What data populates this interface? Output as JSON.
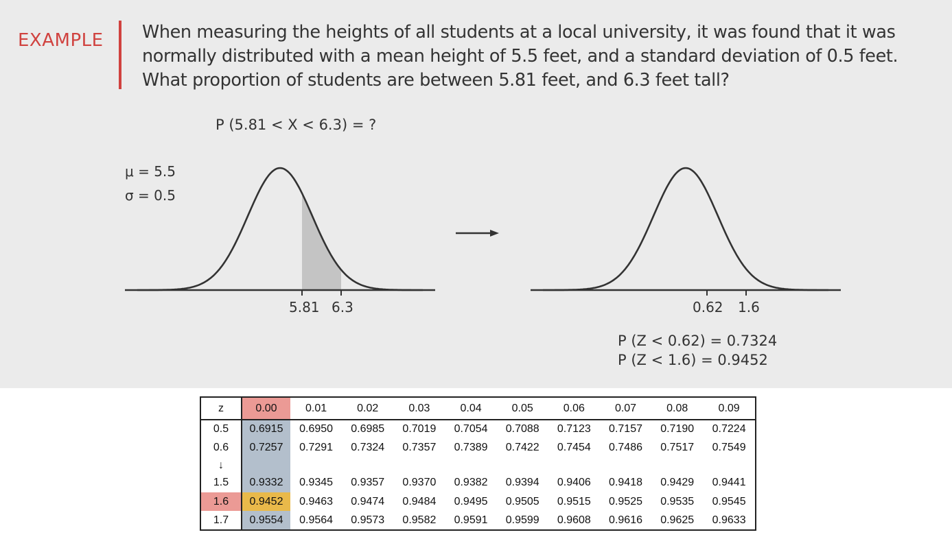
{
  "header": {
    "tag": "EXAMPLE",
    "question_lines": [
      "When measuring the heights of all students at a local university, it was found that it was",
      "normally distributed with a mean height of 5.5 feet, and a standard deviation of 0.5 feet.",
      "What proportion of students are between 5.81 feet, and 6.3 feet tall?"
    ]
  },
  "left_diagram": {
    "probability": "P (5.81 < X < 6.3) = ?",
    "mu": "μ = 5.5",
    "sigma": "σ = 0.5",
    "tick_a": "5.81",
    "tick_b": "6.3"
  },
  "right_diagram": {
    "tick_a": "0.62",
    "tick_b": "1.6",
    "result_1": "P (Z < 0.62) = 0.7324",
    "result_2": "P (Z < 1.6) = 0.9452"
  },
  "colors": {
    "accent_red": "#d0423f",
    "shade_gray": "#c4c4c4",
    "highlight_red": "#eb9a95",
    "highlight_blue": "#b3bfcc",
    "highlight_yellow": "#e9b94a"
  },
  "z_table": {
    "header_z": "z",
    "columns": [
      "0.00",
      "0.01",
      "0.02",
      "0.03",
      "0.04",
      "0.05",
      "0.06",
      "0.07",
      "0.08",
      "0.09"
    ],
    "rows": [
      {
        "z": "0.5",
        "values": [
          "0.6915",
          "0.6950",
          "0.6985",
          "0.7019",
          "0.7054",
          "0.7088",
          "0.7123",
          "0.7157",
          "0.7190",
          "0.7224"
        ]
      },
      {
        "z": "0.6",
        "values": [
          "0.7257",
          "0.7291",
          "0.7324",
          "0.7357",
          "0.7389",
          "0.7422",
          "0.7454",
          "0.7486",
          "0.7517",
          "0.7549"
        ]
      },
      {
        "z": "↓",
        "values": [
          "",
          "",
          "",
          "",
          "",
          "",
          "",
          "",
          "",
          ""
        ]
      },
      {
        "z": "1.5",
        "values": [
          "0.9332",
          "0.9345",
          "0.9357",
          "0.9370",
          "0.9382",
          "0.9394",
          "0.9406",
          "0.9418",
          "0.9429",
          "0.9441"
        ]
      },
      {
        "z": "1.6",
        "values": [
          "0.9452",
          "0.9463",
          "0.9474",
          "0.9484",
          "0.9495",
          "0.9505",
          "0.9515",
          "0.9525",
          "0.9535",
          "0.9545"
        ]
      },
      {
        "z": "1.7",
        "values": [
          "0.9554",
          "0.9564",
          "0.9573",
          "0.9582",
          "0.9591",
          "0.9599",
          "0.9608",
          "0.9616",
          "0.9625",
          "0.9633"
        ]
      }
    ]
  }
}
